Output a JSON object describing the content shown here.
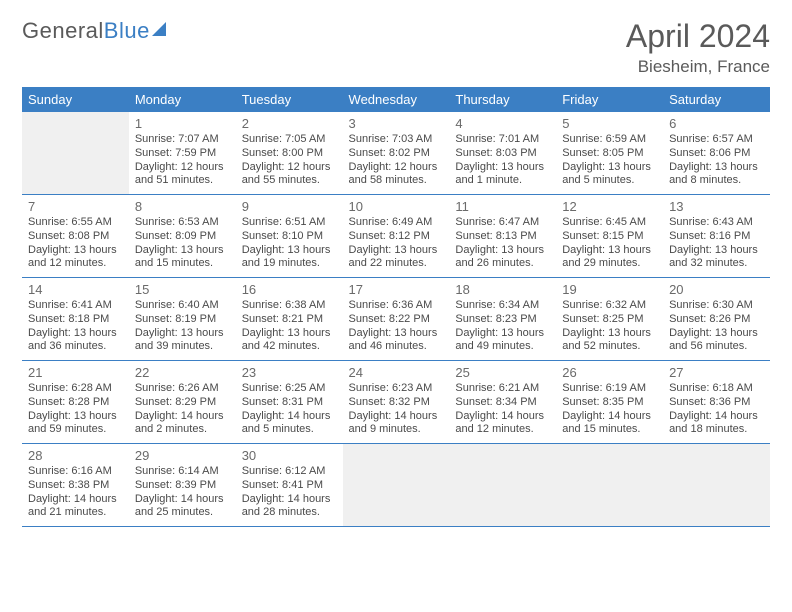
{
  "logo": {
    "word1": "General",
    "word2": "Blue"
  },
  "title": "April 2024",
  "location": "Biesheim, France",
  "days_of_week": [
    "Sunday",
    "Monday",
    "Tuesday",
    "Wednesday",
    "Thursday",
    "Friday",
    "Saturday"
  ],
  "colors": {
    "header_bg": "#3b7fc4",
    "header_text": "#ffffff",
    "border": "#3b7fc4",
    "pad_bg": "#f0f0f0",
    "text": "#4a4a4a"
  },
  "first_day_offset": 1,
  "days": [
    {
      "n": 1,
      "sunrise": "7:07 AM",
      "sunset": "7:59 PM",
      "daylight": "12 hours and 51 minutes."
    },
    {
      "n": 2,
      "sunrise": "7:05 AM",
      "sunset": "8:00 PM",
      "daylight": "12 hours and 55 minutes."
    },
    {
      "n": 3,
      "sunrise": "7:03 AM",
      "sunset": "8:02 PM",
      "daylight": "12 hours and 58 minutes."
    },
    {
      "n": 4,
      "sunrise": "7:01 AM",
      "sunset": "8:03 PM",
      "daylight": "13 hours and 1 minute."
    },
    {
      "n": 5,
      "sunrise": "6:59 AM",
      "sunset": "8:05 PM",
      "daylight": "13 hours and 5 minutes."
    },
    {
      "n": 6,
      "sunrise": "6:57 AM",
      "sunset": "8:06 PM",
      "daylight": "13 hours and 8 minutes."
    },
    {
      "n": 7,
      "sunrise": "6:55 AM",
      "sunset": "8:08 PM",
      "daylight": "13 hours and 12 minutes."
    },
    {
      "n": 8,
      "sunrise": "6:53 AM",
      "sunset": "8:09 PM",
      "daylight": "13 hours and 15 minutes."
    },
    {
      "n": 9,
      "sunrise": "6:51 AM",
      "sunset": "8:10 PM",
      "daylight": "13 hours and 19 minutes."
    },
    {
      "n": 10,
      "sunrise": "6:49 AM",
      "sunset": "8:12 PM",
      "daylight": "13 hours and 22 minutes."
    },
    {
      "n": 11,
      "sunrise": "6:47 AM",
      "sunset": "8:13 PM",
      "daylight": "13 hours and 26 minutes."
    },
    {
      "n": 12,
      "sunrise": "6:45 AM",
      "sunset": "8:15 PM",
      "daylight": "13 hours and 29 minutes."
    },
    {
      "n": 13,
      "sunrise": "6:43 AM",
      "sunset": "8:16 PM",
      "daylight": "13 hours and 32 minutes."
    },
    {
      "n": 14,
      "sunrise": "6:41 AM",
      "sunset": "8:18 PM",
      "daylight": "13 hours and 36 minutes."
    },
    {
      "n": 15,
      "sunrise": "6:40 AM",
      "sunset": "8:19 PM",
      "daylight": "13 hours and 39 minutes."
    },
    {
      "n": 16,
      "sunrise": "6:38 AM",
      "sunset": "8:21 PM",
      "daylight": "13 hours and 42 minutes."
    },
    {
      "n": 17,
      "sunrise": "6:36 AM",
      "sunset": "8:22 PM",
      "daylight": "13 hours and 46 minutes."
    },
    {
      "n": 18,
      "sunrise": "6:34 AM",
      "sunset": "8:23 PM",
      "daylight": "13 hours and 49 minutes."
    },
    {
      "n": 19,
      "sunrise": "6:32 AM",
      "sunset": "8:25 PM",
      "daylight": "13 hours and 52 minutes."
    },
    {
      "n": 20,
      "sunrise": "6:30 AM",
      "sunset": "8:26 PM",
      "daylight": "13 hours and 56 minutes."
    },
    {
      "n": 21,
      "sunrise": "6:28 AM",
      "sunset": "8:28 PM",
      "daylight": "13 hours and 59 minutes."
    },
    {
      "n": 22,
      "sunrise": "6:26 AM",
      "sunset": "8:29 PM",
      "daylight": "14 hours and 2 minutes."
    },
    {
      "n": 23,
      "sunrise": "6:25 AM",
      "sunset": "8:31 PM",
      "daylight": "14 hours and 5 minutes."
    },
    {
      "n": 24,
      "sunrise": "6:23 AM",
      "sunset": "8:32 PM",
      "daylight": "14 hours and 9 minutes."
    },
    {
      "n": 25,
      "sunrise": "6:21 AM",
      "sunset": "8:34 PM",
      "daylight": "14 hours and 12 minutes."
    },
    {
      "n": 26,
      "sunrise": "6:19 AM",
      "sunset": "8:35 PM",
      "daylight": "14 hours and 15 minutes."
    },
    {
      "n": 27,
      "sunrise": "6:18 AM",
      "sunset": "8:36 PM",
      "daylight": "14 hours and 18 minutes."
    },
    {
      "n": 28,
      "sunrise": "6:16 AM",
      "sunset": "8:38 PM",
      "daylight": "14 hours and 21 minutes."
    },
    {
      "n": 29,
      "sunrise": "6:14 AM",
      "sunset": "8:39 PM",
      "daylight": "14 hours and 25 minutes."
    },
    {
      "n": 30,
      "sunrise": "6:12 AM",
      "sunset": "8:41 PM",
      "daylight": "14 hours and 28 minutes."
    }
  ],
  "labels": {
    "sunrise_prefix": "Sunrise: ",
    "sunset_prefix": "Sunset: ",
    "daylight_prefix": "Daylight: "
  }
}
